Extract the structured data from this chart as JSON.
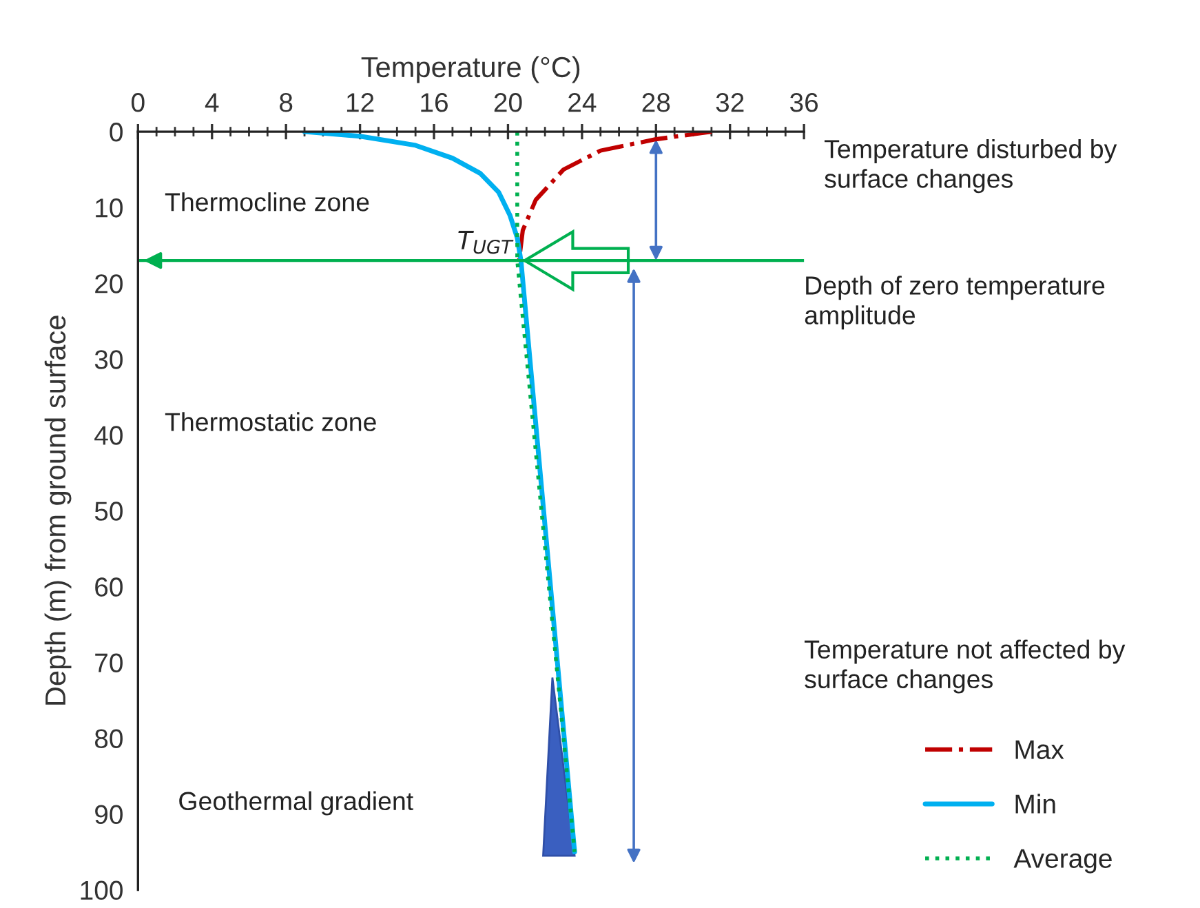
{
  "chart_data": {
    "type": "line",
    "xlabel": "Temperature (°C)",
    "ylabel": "Depth (m) from ground surface",
    "xlim": [
      0,
      36
    ],
    "xticks": [
      0,
      4,
      8,
      12,
      16,
      20,
      24,
      28,
      32,
      36
    ],
    "ylim": [
      100,
      0
    ],
    "yticks": [
      0,
      10,
      20,
      30,
      40,
      50,
      60,
      70,
      80,
      90,
      100
    ],
    "grid": false,
    "legend": "bottom right",
    "series": [
      {
        "name": "Max",
        "color": "#c00000",
        "line_style": "dashdot",
        "x": [
          31,
          28,
          25,
          23,
          21.5,
          20.8,
          20.6
        ],
        "values": [
          0,
          1,
          2.5,
          5,
          9,
          13,
          17
        ]
      },
      {
        "name": "Min",
        "color": "#00b0f0",
        "line_style": "solid",
        "x": [
          9,
          12,
          15,
          17,
          18.5,
          19.5,
          20.1,
          20.5,
          20.7,
          23.6
        ],
        "values": [
          0,
          0.6,
          1.8,
          3.5,
          5.5,
          8,
          11,
          14,
          17,
          95
        ]
      },
      {
        "name": "Average",
        "color": "#00b050",
        "line_style": "dotted",
        "x": [
          20.5,
          20.5,
          23.6
        ],
        "values": [
          0,
          17,
          95
        ]
      }
    ],
    "ref_lines": [
      {
        "axis": "y",
        "value": 17,
        "color": "#00b050"
      }
    ],
    "annotations": [
      {
        "text": "T$_{UGT}$",
        "x": 20.7,
        "y": 17
      },
      "Temperature disturbed by surface changes",
      "Depth of zero temperature amplitude",
      "Temperature not affected by surface changes",
      "Thermocline zone",
      "Thermostatic zone",
      "Geothermal gradient"
    ]
  }
}
